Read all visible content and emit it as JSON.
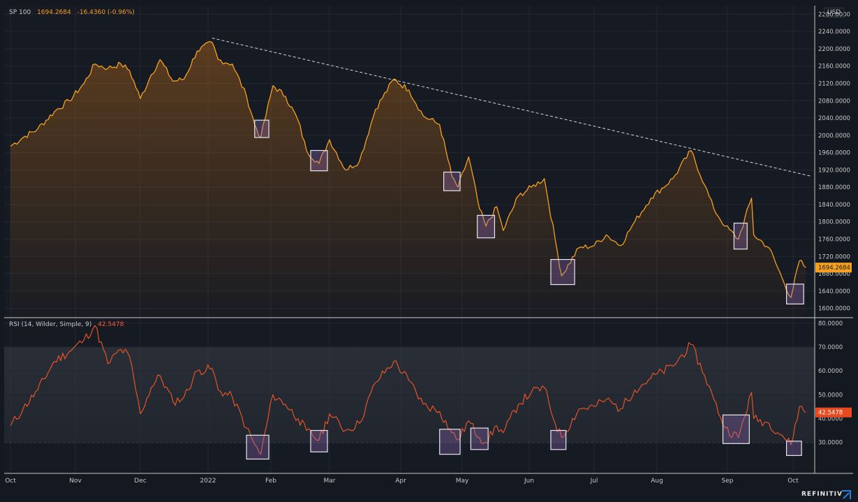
{
  "header": {
    "symbol": "SP 100",
    "last": "1694.2684",
    "change": "-16.4360 (-0.96%)",
    "currency": "USD"
  },
  "rsi_legend": {
    "label": "RSI (14, Wilder, Simple, 9)",
    "value": "42.5478"
  },
  "brand": "REFINITIV",
  "colors": {
    "price_line": "#f5a021",
    "rsi_line": "#e35427",
    "highlight_box": "#e8e8ee",
    "trendline": "#d8d8d8",
    "background": "#141820"
  },
  "chart_data": [
    {
      "type": "area",
      "title": "SP 100",
      "x_ticks": [
        "Oct",
        "Nov",
        "Dec",
        "2022",
        "Feb",
        "Mar",
        "Apr",
        "May",
        "Jun",
        "Jul",
        "Aug",
        "Sep",
        "Oct"
      ],
      "y_ticks": [
        "1600.0000",
        "1640.0000",
        "1680.0000",
        "1720.0000",
        "1760.0000",
        "1800.0000",
        "1840.0000",
        "1880.0000",
        "1920.0000",
        "1960.0000",
        "2000.0000",
        "2040.0000",
        "2080.0000",
        "2120.0000",
        "2160.0000",
        "2200.0000",
        "2240.0000",
        "2280.0000"
      ],
      "ylim": [
        1580,
        2300
      ],
      "last_price_label": "1694.2684",
      "series": [
        {
          "keypoints": [
            [
              "2021-10-01",
              1975
            ],
            [
              "2021-10-07",
              1995
            ],
            [
              "2021-10-14",
              2015
            ],
            [
              "2021-10-22",
              2055
            ],
            [
              "2021-10-29",
              2080
            ],
            [
              "2021-11-05",
              2120
            ],
            [
              "2021-11-10",
              2165
            ],
            [
              "2021-11-16",
              2155
            ],
            [
              "2021-11-22",
              2165
            ],
            [
              "2021-11-26",
              2150
            ],
            [
              "2021-12-01",
              2085
            ],
            [
              "2021-12-06",
              2140
            ],
            [
              "2021-12-10",
              2175
            ],
            [
              "2021-12-16",
              2125
            ],
            [
              "2021-12-21",
              2130
            ],
            [
              "2021-12-27",
              2195
            ],
            [
              "2022-01-03",
              2215
            ],
            [
              "2022-01-06",
              2175
            ],
            [
              "2022-01-13",
              2165
            ],
            [
              "2022-01-20",
              2090
            ],
            [
              "2022-01-24",
              2025
            ],
            [
              "2022-01-27",
              1995
            ],
            [
              "2022-02-02",
              2115
            ],
            [
              "2022-02-08",
              2090
            ],
            [
              "2022-02-14",
              2035
            ],
            [
              "2022-02-18",
              1965
            ],
            [
              "2022-02-24",
              1935
            ],
            [
              "2022-03-01",
              1990
            ],
            [
              "2022-03-08",
              1920
            ],
            [
              "2022-03-14",
              1940
            ],
            [
              "2022-03-21",
              2060
            ],
            [
              "2022-03-29",
              2130
            ],
            [
              "2022-04-05",
              2105
            ],
            [
              "2022-04-12",
              2045
            ],
            [
              "2022-04-20",
              2025
            ],
            [
              "2022-04-26",
              1905
            ],
            [
              "2022-04-29",
              1880
            ],
            [
              "2022-05-04",
              1950
            ],
            [
              "2022-05-09",
              1830
            ],
            [
              "2022-05-12",
              1790
            ],
            [
              "2022-05-17",
              1835
            ],
            [
              "2022-05-20",
              1780
            ],
            [
              "2022-05-27",
              1860
            ],
            [
              "2022-06-02",
              1880
            ],
            [
              "2022-06-08",
              1900
            ],
            [
              "2022-06-13",
              1760
            ],
            [
              "2022-06-16",
              1675
            ],
            [
              "2022-06-24",
              1740
            ],
            [
              "2022-07-01",
              1745
            ],
            [
              "2022-07-07",
              1770
            ],
            [
              "2022-07-14",
              1745
            ],
            [
              "2022-07-21",
              1800
            ],
            [
              "2022-07-29",
              1855
            ],
            [
              "2022-08-08",
              1900
            ],
            [
              "2022-08-16",
              1965
            ],
            [
              "2022-08-22",
              1885
            ],
            [
              "2022-08-26",
              1830
            ],
            [
              "2022-08-31",
              1790
            ],
            [
              "2022-09-06",
              1760
            ],
            [
              "2022-09-12",
              1855
            ],
            [
              "2022-09-13",
              1770
            ],
            [
              "2022-09-20",
              1740
            ],
            [
              "2022-09-26",
              1670
            ],
            [
              "2022-09-30",
              1625
            ],
            [
              "2022-10-04",
              1710
            ],
            [
              "2022-10-07",
              1694.27
            ]
          ]
        }
      ],
      "trendline": {
        "from": [
          "2022-01-03",
          2225
        ],
        "to": [
          "2022-10-10",
          1905
        ]
      },
      "highlight_boxes": [
        {
          "from": "2022-01-24",
          "to": "2022-01-31",
          "low": 1995,
          "high": 2035
        },
        {
          "from": "2022-02-20",
          "to": "2022-02-28",
          "low": 1918,
          "high": 1965
        },
        {
          "from": "2022-04-22",
          "to": "2022-04-30",
          "low": 1872,
          "high": 1915
        },
        {
          "from": "2022-05-08",
          "to": "2022-05-16",
          "low": 1763,
          "high": 1815
        },
        {
          "from": "2022-06-11",
          "to": "2022-06-22",
          "low": 1655,
          "high": 1713
        },
        {
          "from": "2022-09-04",
          "to": "2022-09-10",
          "low": 1737,
          "high": 1797
        },
        {
          "from": "2022-09-28",
          "to": "2022-10-06",
          "low": 1610,
          "high": 1656
        }
      ]
    },
    {
      "type": "line",
      "title": "RSI (14, Wilder, Simple, 9)",
      "y_ticks": [
        "30.0000",
        "40.0000",
        "50.0000",
        "60.0000",
        "70.0000",
        "80.0000"
      ],
      "ylim": [
        17,
        82
      ],
      "reference_lines": [
        30,
        70
      ],
      "last_value_label": "42.5478",
      "series": [
        {
          "keypoints": [
            [
              "2021-10-01",
              37
            ],
            [
              "2021-10-07",
              44
            ],
            [
              "2021-10-14",
              52
            ],
            [
              "2021-10-22",
              64
            ],
            [
              "2021-10-29",
              68
            ],
            [
              "2021-11-05",
              73
            ],
            [
              "2021-11-10",
              79
            ],
            [
              "2021-11-16",
              63
            ],
            [
              "2021-11-22",
              69
            ],
            [
              "2021-11-26",
              66
            ],
            [
              "2021-12-01",
              42
            ],
            [
              "2021-12-06",
              53
            ],
            [
              "2021-12-10",
              58
            ],
            [
              "2021-12-16",
              47
            ],
            [
              "2021-12-21",
              49
            ],
            [
              "2021-12-27",
              60
            ],
            [
              "2022-01-03",
              61
            ],
            [
              "2022-01-06",
              52
            ],
            [
              "2022-01-13",
              49
            ],
            [
              "2022-01-20",
              36
            ],
            [
              "2022-01-24",
              29
            ],
            [
              "2022-01-27",
              25
            ],
            [
              "2022-02-02",
              50
            ],
            [
              "2022-02-08",
              46
            ],
            [
              "2022-02-14",
              40
            ],
            [
              "2022-02-18",
              35
            ],
            [
              "2022-02-24",
              31
            ],
            [
              "2022-03-01",
              42
            ],
            [
              "2022-03-08",
              35
            ],
            [
              "2022-03-14",
              38
            ],
            [
              "2022-03-21",
              55
            ],
            [
              "2022-03-29",
              64
            ],
            [
              "2022-04-05",
              56
            ],
            [
              "2022-04-12",
              46
            ],
            [
              "2022-04-20",
              43
            ],
            [
              "2022-04-26",
              34
            ],
            [
              "2022-04-29",
              31
            ],
            [
              "2022-05-04",
              39
            ],
            [
              "2022-05-09",
              32
            ],
            [
              "2022-05-12",
              30
            ],
            [
              "2022-05-17",
              37
            ],
            [
              "2022-05-20",
              34
            ],
            [
              "2022-05-27",
              46
            ],
            [
              "2022-06-02",
              51
            ],
            [
              "2022-06-08",
              53
            ],
            [
              "2022-06-13",
              38
            ],
            [
              "2022-06-16",
              32
            ],
            [
              "2022-06-24",
              44
            ],
            [
              "2022-07-01",
              45
            ],
            [
              "2022-07-07",
              48
            ],
            [
              "2022-07-14",
              44
            ],
            [
              "2022-07-21",
              52
            ],
            [
              "2022-07-29",
              57
            ],
            [
              "2022-08-08",
              62
            ],
            [
              "2022-08-16",
              71
            ],
            [
              "2022-08-22",
              58
            ],
            [
              "2022-08-26",
              48
            ],
            [
              "2022-08-31",
              36
            ],
            [
              "2022-09-06",
              32
            ],
            [
              "2022-09-12",
              51
            ],
            [
              "2022-09-13",
              40
            ],
            [
              "2022-09-20",
              38
            ],
            [
              "2022-09-26",
              33
            ],
            [
              "2022-09-30",
              29
            ],
            [
              "2022-10-04",
              45
            ],
            [
              "2022-10-07",
              42.55
            ]
          ]
        }
      ],
      "highlight_boxes": [
        {
          "from": "2022-01-20",
          "to": "2022-01-31",
          "low": 23,
          "high": 33
        },
        {
          "from": "2022-02-20",
          "to": "2022-02-28",
          "low": 26,
          "high": 35
        },
        {
          "from": "2022-04-20",
          "to": "2022-04-30",
          "low": 25,
          "high": 35.5
        },
        {
          "from": "2022-05-05",
          "to": "2022-05-13",
          "low": 27,
          "high": 36
        },
        {
          "from": "2022-06-11",
          "to": "2022-06-18",
          "low": 27,
          "high": 35
        },
        {
          "from": "2022-08-30",
          "to": "2022-09-11",
          "low": 29.5,
          "high": 41.5
        },
        {
          "from": "2022-09-28",
          "to": "2022-10-05",
          "low": 24.5,
          "high": 30.5
        }
      ]
    }
  ]
}
